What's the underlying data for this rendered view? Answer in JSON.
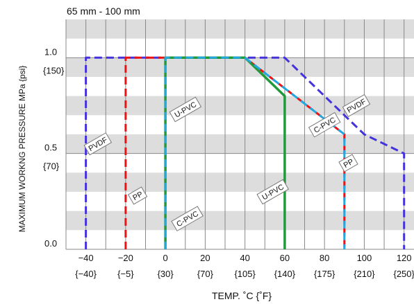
{
  "chart_data": {
    "type": "line",
    "subtitle": "65 mm - 100 mm",
    "xlabel": "TEMP. ˚C {˚F}",
    "ylabel": "MAXIMUM WORKNG PRESSURE  MPa {psi}",
    "xlim": [
      -50,
      125
    ],
    "ylim": [
      0,
      1.2
    ],
    "x_ticks": [
      {
        "c": "−40",
        "f": "{−40}",
        "value": -40
      },
      {
        "c": "−20",
        "f": "{−5}",
        "value": -20
      },
      {
        "c": "0",
        "f": "{30}",
        "value": 0
      },
      {
        "c": "20",
        "f": "{70}",
        "value": 20
      },
      {
        "c": "40",
        "f": "{105}",
        "value": 40
      },
      {
        "c": "60",
        "f": "{140}",
        "value": 60
      },
      {
        "c": "80",
        "f": "{175}",
        "value": 80
      },
      {
        "c": "100",
        "f": "{210}",
        "value": 100
      },
      {
        "c": "120",
        "f": "{250}",
        "value": 120
      }
    ],
    "y_ticks": [
      {
        "label": "1.0",
        "psi": "{150}",
        "value": 1.0
      },
      {
        "label": "0.5",
        "psi": "{70}",
        "value": 0.5
      },
      {
        "label": "0.0",
        "psi": "",
        "value": 0.0
      }
    ],
    "series": [
      {
        "name": "PVDF",
        "color": "#4433dd",
        "style": "dashed",
        "width": 3,
        "points": [
          [
            -40,
            0
          ],
          [
            -40,
            1.0
          ],
          [
            60,
            1.0
          ],
          [
            100,
            0.6
          ],
          [
            120,
            0.5
          ],
          [
            120,
            0
          ]
        ]
      },
      {
        "name": "PP",
        "color": "#ee1111",
        "style": "dashed",
        "width": 3,
        "points": [
          [
            -20,
            0
          ],
          [
            -20,
            1.0
          ],
          [
            40,
            1.0
          ],
          [
            90,
            0.6
          ],
          [
            90,
            0
          ]
        ]
      },
      {
        "name": "U-PVC",
        "color": "#22993a",
        "style": "solid",
        "width": 3.5,
        "points": [
          [
            0,
            0
          ],
          [
            0,
            1.0
          ],
          [
            40,
            1.0
          ],
          [
            60,
            0.8
          ],
          [
            60,
            0
          ]
        ]
      },
      {
        "name": "C-PVC",
        "color": "#22a8e0",
        "style": "dashed",
        "width": 3,
        "points": [
          [
            0,
            0
          ],
          [
            0,
            1.0
          ],
          [
            40,
            1.0
          ],
          [
            90,
            0.6
          ],
          [
            90,
            0
          ]
        ]
      }
    ],
    "series_labels": [
      {
        "text": "PVDF",
        "x": -34,
        "y": 0.55,
        "angle": -30
      },
      {
        "text": "PVDF",
        "x": 96,
        "y": 0.75,
        "angle": -30
      },
      {
        "text": "PP",
        "x": -14,
        "y": 0.28,
        "angle": -30
      },
      {
        "text": "PP",
        "x": 92,
        "y": 0.45,
        "angle": -30
      },
      {
        "text": "U-PVC",
        "x": 10,
        "y": 0.73,
        "angle": -30
      },
      {
        "text": "U-PVC",
        "x": 54,
        "y": 0.3,
        "angle": -30
      },
      {
        "text": "C-PVC",
        "x": 11,
        "y": 0.16,
        "angle": -30
      },
      {
        "text": "C-PVC",
        "x": 80,
        "y": 0.65,
        "angle": -30
      }
    ],
    "grid": true,
    "band_color": "#dddddd",
    "grid_color": "#888888"
  }
}
